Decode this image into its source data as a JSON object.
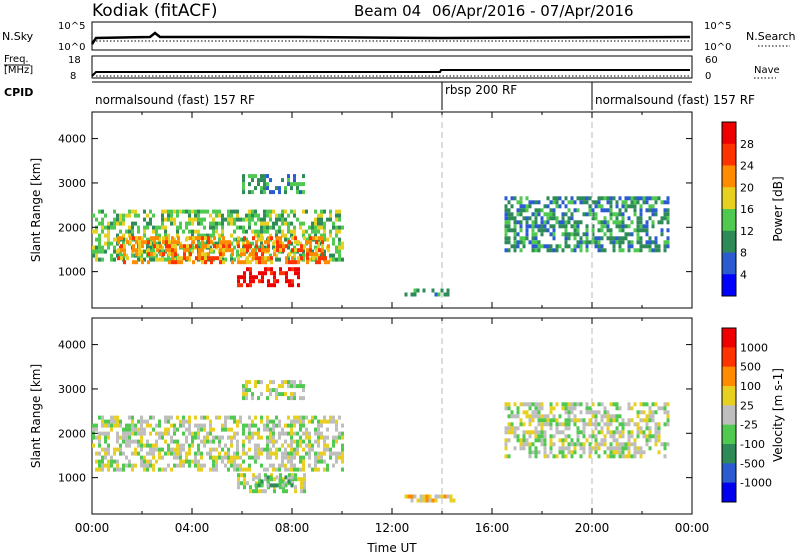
{
  "header": {
    "station": "Kodiak (fitACF)",
    "beam": "Beam 04",
    "date_range": "06/Apr/2016 - 07/Apr/2016"
  },
  "top_panels": {
    "nsky_label": "N.Sky",
    "nsearch_label": "N.Search",
    "freq_label_line1": "Freq.",
    "freq_label_line2": "[MHz]",
    "nave_label": "Nave",
    "cpid_label": "CPID",
    "nsky_ticks": [
      "10^5",
      "10^0"
    ],
    "nsearch_ticks": [
      "10^5",
      "10^0"
    ],
    "freq_ticks": [
      "18",
      "8"
    ],
    "nave_ticks": [
      "60",
      "0"
    ]
  },
  "cpid_segments": [
    {
      "name": "normalsound (fast) 157 RF",
      "start_hour": 0,
      "end_hour": 14
    },
    {
      "name": "rbsp 200 RF",
      "start_hour": 14,
      "end_hour": 20
    },
    {
      "name": "normalsound (fast) 157 RF",
      "start_hour": 20,
      "end_hour": 24
    }
  ],
  "chart_data": [
    {
      "type": "heatmap",
      "name": "power",
      "xlabel": "Time UT",
      "ylabel": "Slant Range [km]",
      "x_ticks": [
        "00:00",
        "04:00",
        "08:00",
        "12:00",
        "16:00",
        "20:00",
        "00:00"
      ],
      "xlim_hours": [
        0,
        24
      ],
      "ylim": [
        180,
        4600
      ],
      "y_ticks": [
        1000,
        2000,
        3000,
        4000
      ],
      "colorbar": {
        "label": "Power [dB]",
        "ticks": [
          "4",
          "8",
          "12",
          "16",
          "20",
          "24",
          "28"
        ],
        "colors": [
          "#0000ff",
          "#2a5bd0",
          "#2e8b57",
          "#4fc94f",
          "#e8d020",
          "#ff8c00",
          "#ff3300",
          "#ee0000"
        ]
      },
      "regions": [
        {
          "t0": 0.0,
          "t1": 10.0,
          "r0": 1250,
          "r1": 2400,
          "level": 3
        },
        {
          "t0": 1.0,
          "t1": 9.5,
          "r0": 1200,
          "r1": 1800,
          "level": 5
        },
        {
          "t0": 5.8,
          "t1": 8.3,
          "r0": 700,
          "r1": 1100,
          "level": 7
        },
        {
          "t0": 6.0,
          "t1": 8.5,
          "r0": 2800,
          "r1": 3200,
          "level": 2
        },
        {
          "t0": 12.5,
          "t1": 14.5,
          "r0": 450,
          "r1": 620,
          "level": 2
        },
        {
          "t0": 16.5,
          "t1": 23.0,
          "r0": 1450,
          "r1": 2700,
          "level": 2
        }
      ],
      "vertical_markers_hours": [
        14,
        20
      ]
    },
    {
      "type": "heatmap",
      "name": "velocity",
      "xlabel": "Time UT",
      "ylabel": "Slant Range [km]",
      "x_ticks": [
        "00:00",
        "04:00",
        "08:00",
        "12:00",
        "16:00",
        "20:00",
        "00:00"
      ],
      "xlim_hours": [
        0,
        24
      ],
      "ylim": [
        180,
        4600
      ],
      "y_ticks": [
        1000,
        2000,
        3000,
        4000
      ],
      "colorbar": {
        "label": "Velocity [m s-1]",
        "ticks": [
          "1000",
          "500",
          "100",
          "25",
          "-25",
          "-100",
          "-500",
          "-1000"
        ],
        "colors": [
          "#0000ee",
          "#2a5bd0",
          "#2e8b57",
          "#4fc94f",
          "#bebebe",
          "#e8d020",
          "#ff8c00",
          "#ff3300",
          "#ee0000"
        ]
      },
      "regions": [
        {
          "t0": 0.0,
          "t1": 10.0,
          "r0": 1200,
          "r1": 2400,
          "level": 4
        },
        {
          "t0": 5.8,
          "t1": 8.5,
          "r0": 700,
          "r1": 1100,
          "level": 4
        },
        {
          "t0": 6.5,
          "t1": 8.0,
          "r0": 800,
          "r1": 1050,
          "level": 3
        },
        {
          "t0": 6.0,
          "t1": 8.5,
          "r0": 2800,
          "r1": 3200,
          "level": 4
        },
        {
          "t0": 12.5,
          "t1": 14.5,
          "r0": 450,
          "r1": 620,
          "level": 5
        },
        {
          "t0": 16.5,
          "t1": 23.0,
          "r0": 1450,
          "r1": 2700,
          "level": 4
        }
      ],
      "vertical_markers_hours": [
        14,
        20
      ]
    }
  ]
}
